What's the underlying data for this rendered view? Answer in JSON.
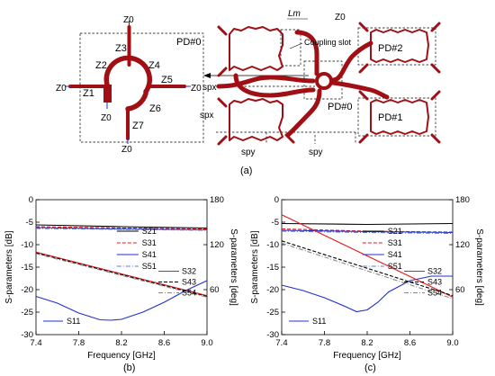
{
  "figure": {
    "panel_a_label": "(a)",
    "panel_b_label": "(b)",
    "panel_c_label": "(c)"
  },
  "diagram": {
    "port_label": "Z0",
    "pd_labels": {
      "main": "PD#0",
      "top_right": "PD#2",
      "bottom_right": "PD#1"
    },
    "segment_labels": [
      "Z1",
      "Z2",
      "Z3",
      "Z4",
      "Z5",
      "Z6",
      "Z7"
    ],
    "spacing_labels": {
      "spx_upper": "spx",
      "spx_lower": "spx",
      "spy_left": "spy",
      "spy_right": "spy"
    },
    "lm_label": "Lm",
    "coupling_slot": "Coupling slot",
    "colors": {
      "trace": "#a00f14",
      "dashed_box": "#000000",
      "arrow": "#000000"
    }
  },
  "chart_data": [
    {
      "type": "line",
      "panel": "(b)",
      "xlabel": "Frequency [GHz]",
      "ylabel_left": "S-parameters [dB]",
      "ylabel_right": "S-parameters [deg]",
      "xlim": [
        7.4,
        9.0
      ],
      "ylim_left": [
        -30,
        0
      ],
      "ylim_right": [
        0,
        180
      ],
      "xticks": [
        "7.4",
        "7.8",
        "8.2",
        "8.6",
        "9.0"
      ],
      "yticks_left": [
        "0",
        "-5",
        "-10",
        "-15",
        "-20",
        "-25",
        "-30"
      ],
      "yticks_right": [
        "180",
        "120",
        "60"
      ],
      "grid": false,
      "series": [
        {
          "name": "S21",
          "axis": "left",
          "color": "#000000",
          "dash": "solid",
          "x": [
            7.4,
            8.2,
            9.0
          ],
          "y": [
            -5.6,
            -6.0,
            -6.3
          ]
        },
        {
          "name": "S31",
          "axis": "left",
          "color": "#e41a1c",
          "dash": "dashed",
          "x": [
            7.4,
            8.2,
            9.0
          ],
          "y": [
            -6.0,
            -6.3,
            -6.5
          ]
        },
        {
          "name": "S41",
          "axis": "left",
          "color": "#1f2fd0",
          "dash": "solid",
          "x": [
            7.4,
            8.2,
            9.0
          ],
          "y": [
            -6.2,
            -6.5,
            -6.7
          ]
        },
        {
          "name": "S51",
          "axis": "left",
          "color": "#5a78d8",
          "dash": "dashdot",
          "x": [
            7.4,
            8.2,
            9.0
          ],
          "y": [
            -6.4,
            -6.6,
            -6.8
          ]
        },
        {
          "name": "S11",
          "axis": "left",
          "color": "#1f2fd0",
          "dash": "solid",
          "x": [
            7.4,
            7.6,
            7.8,
            8.0,
            8.1,
            8.2,
            8.4,
            8.6,
            8.8,
            9.0
          ],
          "y": [
            -21.5,
            -23.0,
            -25.2,
            -26.7,
            -26.8,
            -26.6,
            -25.0,
            -22.8,
            -20.2,
            -18.0
          ]
        },
        {
          "name": "S32",
          "axis": "right",
          "color": "#e41a1c",
          "dash": "solid",
          "x": [
            7.4,
            9.0
          ],
          "y": [
            110,
            52
          ]
        },
        {
          "name": "S43",
          "axis": "right",
          "color": "#000000",
          "dash": "dashed",
          "x": [
            7.4,
            9.0
          ],
          "y": [
            109,
            51
          ]
        },
        {
          "name": "S54",
          "axis": "right",
          "color": "#888888",
          "dash": "dashdot",
          "x": [
            7.4,
            9.0
          ],
          "y": [
            108,
            50
          ]
        }
      ]
    },
    {
      "type": "line",
      "panel": "(c)",
      "xlabel": "Frequency [GHz]",
      "ylabel_left": "S-parameters [dB]",
      "ylabel_right": "S-parameters [deg]",
      "xlim": [
        7.4,
        9.0
      ],
      "ylim_left": [
        -30,
        0
      ],
      "ylim_right": [
        0,
        180
      ],
      "xticks": [
        "7.4",
        "7.8",
        "8.2",
        "8.6",
        "9.0"
      ],
      "yticks_left": [
        "0",
        "-5",
        "-10",
        "-15",
        "-20",
        "-25",
        "-30"
      ],
      "yticks_right": [
        "180",
        "120",
        "60"
      ],
      "grid": false,
      "series": [
        {
          "name": "S21",
          "axis": "left",
          "color": "#000000",
          "dash": "solid",
          "x": [
            7.4,
            8.2,
            9.0
          ],
          "y": [
            -5.3,
            -5.5,
            -5.3
          ]
        },
        {
          "name": "S31",
          "axis": "left",
          "color": "#e41a1c",
          "dash": "dashed",
          "x": [
            7.4,
            8.2,
            9.0
          ],
          "y": [
            -6.5,
            -7.0,
            -7.2
          ]
        },
        {
          "name": "S41",
          "axis": "left",
          "color": "#1f2fd0",
          "dash": "solid",
          "x": [
            7.4,
            8.2,
            9.0
          ],
          "y": [
            -6.8,
            -7.1,
            -7.3
          ]
        },
        {
          "name": "S51",
          "axis": "left",
          "color": "#5a78d8",
          "dash": "dashdot",
          "x": [
            7.4,
            8.2,
            9.0
          ],
          "y": [
            -7.0,
            -7.3,
            -7.5
          ]
        },
        {
          "name": "S11",
          "axis": "left",
          "color": "#1f2fd0",
          "dash": "solid",
          "x": [
            7.4,
            7.6,
            7.8,
            8.0,
            8.1,
            8.2,
            8.3,
            8.4,
            8.6,
            8.8,
            9.0
          ],
          "y": [
            -19.0,
            -20.2,
            -21.8,
            -23.8,
            -24.9,
            -24.5,
            -22.8,
            -20.5,
            -18.0,
            -17.0,
            -17.0
          ]
        },
        {
          "name": "S32",
          "axis": "right",
          "color": "#e41a1c",
          "dash": "solid",
          "x": [
            7.4,
            9.0
          ],
          "y": [
            160,
            50
          ]
        },
        {
          "name": "S43",
          "axis": "right",
          "color": "#000000",
          "dash": "dashed",
          "x": [
            7.4,
            9.0
          ],
          "y": [
            125,
            52
          ]
        },
        {
          "name": "S54",
          "axis": "right",
          "color": "#888888",
          "dash": "dashdot",
          "x": [
            7.4,
            9.0
          ],
          "y": [
            122,
            48
          ]
        }
      ]
    }
  ]
}
